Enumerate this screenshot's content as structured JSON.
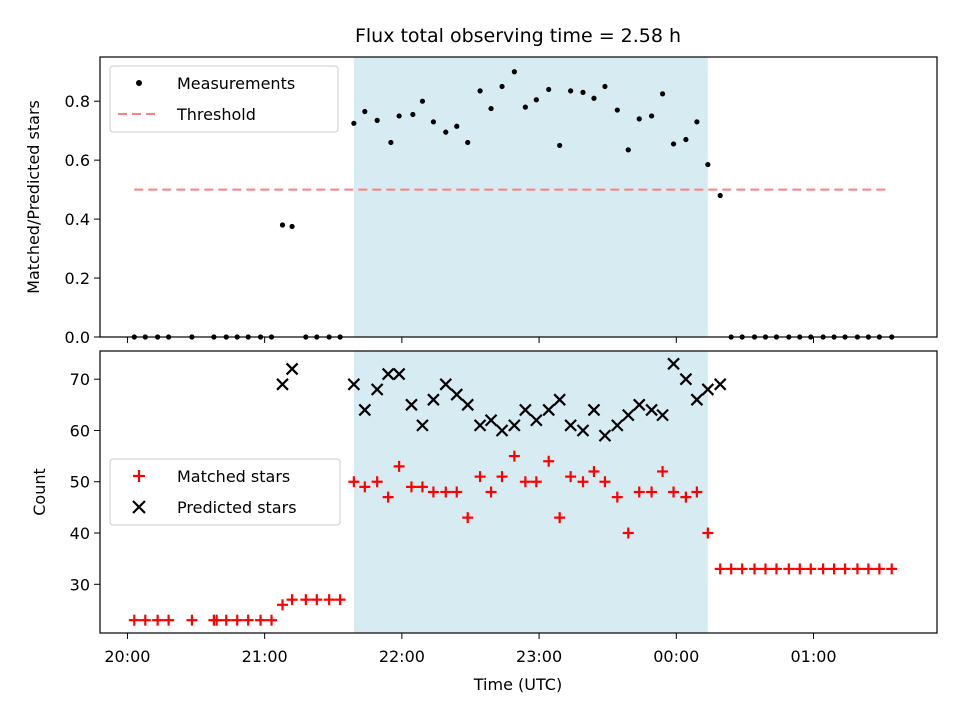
{
  "chart_data": [
    {
      "type": "scatter",
      "title": "Flux total observing time = 2.58 h",
      "ylabel": "Matched/Predicted stars",
      "ylim": [
        0,
        0.95
      ],
      "yticks": [
        "0.0",
        "0.2",
        "0.4",
        "0.6",
        "0.8"
      ],
      "xlim_hours": [
        19.8,
        25.9
      ],
      "highlight_span_hours": [
        21.65,
        24.23
      ],
      "highlight_color": "#add8e6",
      "grid": false,
      "legend": {
        "position": "top-left",
        "entries": [
          "Measurements",
          "Threshold"
        ]
      },
      "threshold": {
        "name": "Threshold",
        "value": 0.5,
        "x_range_hours": [
          20.05,
          25.55
        ],
        "color": "#ff7f7f"
      },
      "series": [
        {
          "name": "Measurements",
          "color": "#000000",
          "marker": "dot",
          "points": [
            [
              20.05,
              0
            ],
            [
              20.13,
              0
            ],
            [
              20.22,
              0
            ],
            [
              20.3,
              0
            ],
            [
              20.47,
              0
            ],
            [
              20.63,
              0
            ],
            [
              20.72,
              0
            ],
            [
              20.8,
              0
            ],
            [
              20.88,
              0
            ],
            [
              20.97,
              0
            ],
            [
              21.05,
              0
            ],
            [
              21.13,
              0.38
            ],
            [
              21.2,
              0.375
            ],
            [
              21.3,
              0
            ],
            [
              21.38,
              0
            ],
            [
              21.47,
              0
            ],
            [
              21.55,
              0
            ],
            [
              21.65,
              0.725
            ],
            [
              21.73,
              0.765
            ],
            [
              21.82,
              0.735
            ],
            [
              21.92,
              0.66
            ],
            [
              21.98,
              0.75
            ],
            [
              22.08,
              0.755
            ],
            [
              22.15,
              0.8
            ],
            [
              22.23,
              0.73
            ],
            [
              22.32,
              0.695
            ],
            [
              22.4,
              0.715
            ],
            [
              22.48,
              0.66
            ],
            [
              22.57,
              0.835
            ],
            [
              22.65,
              0.775
            ],
            [
              22.73,
              0.85
            ],
            [
              22.82,
              0.9
            ],
            [
              22.9,
              0.78
            ],
            [
              22.98,
              0.805
            ],
            [
              23.07,
              0.84
            ],
            [
              23.15,
              0.65
            ],
            [
              23.23,
              0.835
            ],
            [
              23.32,
              0.83
            ],
            [
              23.4,
              0.81
            ],
            [
              23.48,
              0.85
            ],
            [
              23.57,
              0.77
            ],
            [
              23.65,
              0.635
            ],
            [
              23.73,
              0.74
            ],
            [
              23.82,
              0.75
            ],
            [
              23.9,
              0.825
            ],
            [
              23.98,
              0.655
            ],
            [
              24.07,
              0.67
            ],
            [
              24.15,
              0.73
            ],
            [
              24.23,
              0.585
            ],
            [
              24.32,
              0.48
            ],
            [
              24.4,
              0
            ],
            [
              24.48,
              0
            ],
            [
              24.57,
              0
            ],
            [
              24.65,
              0
            ],
            [
              24.73,
              0
            ],
            [
              24.82,
              0
            ],
            [
              24.9,
              0
            ],
            [
              24.98,
              0
            ],
            [
              25.07,
              0
            ],
            [
              25.15,
              0
            ],
            [
              25.23,
              0
            ],
            [
              25.32,
              0
            ],
            [
              25.4,
              0
            ],
            [
              25.48,
              0
            ],
            [
              25.57,
              0
            ]
          ]
        }
      ]
    },
    {
      "type": "scatter",
      "xlabel": "Time (UTC)",
      "ylabel": "Count",
      "ylim": [
        20.5,
        75.5
      ],
      "yticks": [
        "30",
        "40",
        "50",
        "60",
        "70"
      ],
      "xticks": [
        "20:00",
        "21:00",
        "22:00",
        "23:00",
        "00:00",
        "01:00"
      ],
      "xlim_hours": [
        19.8,
        25.9
      ],
      "highlight_span_hours": [
        21.65,
        24.23
      ],
      "highlight_color": "#add8e6",
      "grid": false,
      "legend": {
        "position": "center-left",
        "entries": [
          "Matched stars",
          "Predicted stars"
        ]
      },
      "series": [
        {
          "name": "Matched stars",
          "color": "#ff0000",
          "marker": "plus",
          "points": [
            [
              20.05,
              23
            ],
            [
              20.13,
              23
            ],
            [
              20.22,
              23
            ],
            [
              20.3,
              23
            ],
            [
              20.47,
              23
            ],
            [
              20.63,
              23
            ],
            [
              20.65,
              23
            ],
            [
              20.72,
              23
            ],
            [
              20.8,
              23
            ],
            [
              20.88,
              23
            ],
            [
              20.97,
              23
            ],
            [
              21.05,
              23
            ],
            [
              21.13,
              26
            ],
            [
              21.2,
              27
            ],
            [
              21.3,
              27
            ],
            [
              21.38,
              27
            ],
            [
              21.47,
              27
            ],
            [
              21.55,
              27
            ],
            [
              21.65,
              50
            ],
            [
              21.73,
              49
            ],
            [
              21.82,
              50
            ],
            [
              21.9,
              47
            ],
            [
              21.98,
              53
            ],
            [
              22.07,
              49
            ],
            [
              22.15,
              49
            ],
            [
              22.23,
              48
            ],
            [
              22.32,
              48
            ],
            [
              22.4,
              48
            ],
            [
              22.48,
              43
            ],
            [
              22.57,
              51
            ],
            [
              22.65,
              48
            ],
            [
              22.73,
              51
            ],
            [
              22.82,
              55
            ],
            [
              22.9,
              50
            ],
            [
              22.98,
              50
            ],
            [
              23.07,
              54
            ],
            [
              23.15,
              43
            ],
            [
              23.23,
              51
            ],
            [
              23.32,
              50
            ],
            [
              23.4,
              52
            ],
            [
              23.48,
              50
            ],
            [
              23.57,
              47
            ],
            [
              23.65,
              40
            ],
            [
              23.73,
              48
            ],
            [
              23.82,
              48
            ],
            [
              23.9,
              52
            ],
            [
              23.98,
              48
            ],
            [
              24.07,
              47
            ],
            [
              24.15,
              48
            ],
            [
              24.23,
              40
            ],
            [
              24.32,
              33
            ],
            [
              24.4,
              33
            ],
            [
              24.48,
              33
            ],
            [
              24.57,
              33
            ],
            [
              24.65,
              33
            ],
            [
              24.73,
              33
            ],
            [
              24.82,
              33
            ],
            [
              24.9,
              33
            ],
            [
              24.98,
              33
            ],
            [
              25.07,
              33
            ],
            [
              25.15,
              33
            ],
            [
              25.23,
              33
            ],
            [
              25.32,
              33
            ],
            [
              25.4,
              33
            ],
            [
              25.48,
              33
            ],
            [
              25.57,
              33
            ]
          ]
        },
        {
          "name": "Predicted stars",
          "color": "#000000",
          "marker": "x",
          "points": [
            [
              21.13,
              69
            ],
            [
              21.2,
              72
            ],
            [
              21.65,
              69
            ],
            [
              21.73,
              64
            ],
            [
              21.82,
              68
            ],
            [
              21.9,
              71
            ],
            [
              21.98,
              71
            ],
            [
              22.07,
              65
            ],
            [
              22.15,
              61
            ],
            [
              22.23,
              66
            ],
            [
              22.32,
              69
            ],
            [
              22.4,
              67
            ],
            [
              22.48,
              65
            ],
            [
              22.57,
              61
            ],
            [
              22.65,
              62
            ],
            [
              22.73,
              60
            ],
            [
              22.82,
              61
            ],
            [
              22.9,
              64
            ],
            [
              22.98,
              62
            ],
            [
              23.07,
              64
            ],
            [
              23.15,
              66
            ],
            [
              23.23,
              61
            ],
            [
              23.32,
              60
            ],
            [
              23.4,
              64
            ],
            [
              23.48,
              59
            ],
            [
              23.57,
              61
            ],
            [
              23.65,
              63
            ],
            [
              23.73,
              65
            ],
            [
              23.82,
              64
            ],
            [
              23.9,
              63
            ],
            [
              23.98,
              73
            ],
            [
              24.07,
              70
            ],
            [
              24.15,
              66
            ],
            [
              24.23,
              68
            ],
            [
              24.32,
              69
            ]
          ]
        }
      ]
    }
  ]
}
